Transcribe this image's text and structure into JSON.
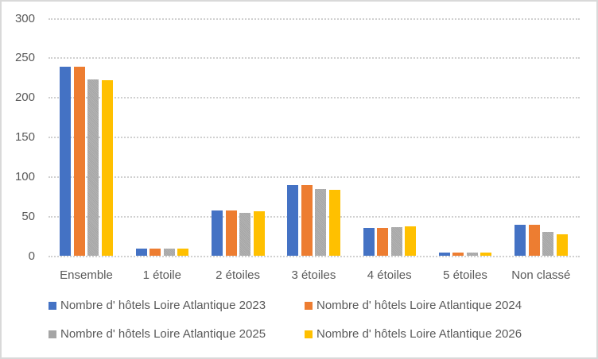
{
  "chart_data": {
    "type": "bar",
    "title": "",
    "xlabel": "",
    "ylabel": "",
    "ylim": [
      0,
      300
    ],
    "yticks": [
      0,
      50,
      100,
      150,
      200,
      250,
      300
    ],
    "grid": true,
    "legend_position": "bottom",
    "categories": [
      "Ensemble",
      "1 étoile",
      "2 étoiles",
      "3 étoiles",
      "4 étoiles",
      "5 étoiles",
      "Non classé"
    ],
    "series": [
      {
        "name": "Nombre d' hôtels Loire Atlantique 2023",
        "color": "#4472c4",
        "values": [
          239,
          10,
          58,
          90,
          36,
          5,
          40
        ]
      },
      {
        "name": "Nombre d' hôtels Loire Atlantique 2024",
        "color": "#ed7d31",
        "values": [
          239,
          10,
          58,
          90,
          36,
          5,
          40
        ]
      },
      {
        "name": "Nombre d' hôtels Loire Atlantique 2025",
        "color": "#a5a5a5",
        "values": [
          223,
          10,
          55,
          85,
          37,
          5,
          31
        ]
      },
      {
        "name": "Nombre d' hôtels Loire Atlantique 2026",
        "color": "#ffc000",
        "values": [
          222,
          10,
          57,
          84,
          38,
          5,
          28
        ]
      }
    ]
  }
}
